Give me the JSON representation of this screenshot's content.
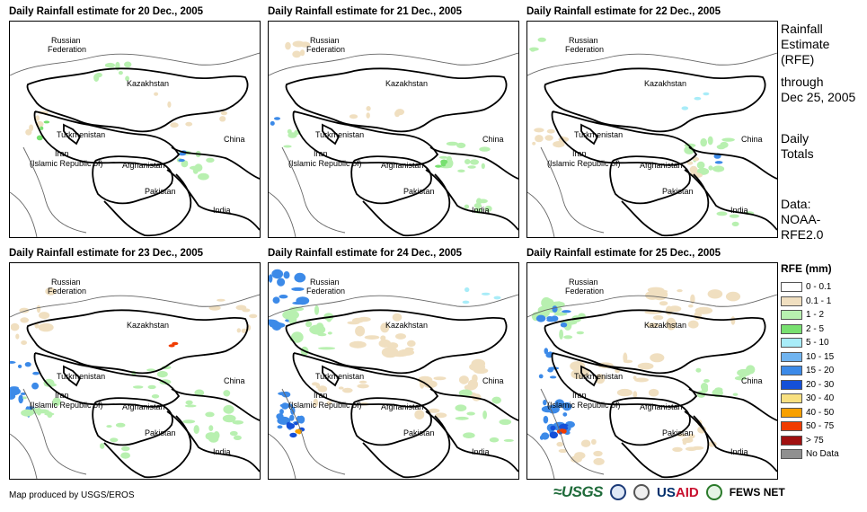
{
  "panels": [
    {
      "title": "Daily Rainfall estimate for 20 Dec., 2005"
    },
    {
      "title": "Daily Rainfall estimate for 21 Dec., 2005"
    },
    {
      "title": "Daily Rainfall estimate for 22 Dec., 2005"
    },
    {
      "title": "Daily Rainfall estimate for 23 Dec., 2005"
    },
    {
      "title": "Daily Rainfall estimate for 24 Dec., 2005"
    },
    {
      "title": "Daily Rainfall estimate for 25 Dec., 2005"
    }
  ],
  "map_labels": {
    "russia_1": "Russian",
    "russia_2": "Federation",
    "kazakhstan": "Kazakhstan",
    "turkmenistan": "Turkmenistan",
    "iran_1": "Iran",
    "iran_2": "(Islamic Republic of)",
    "afghanistan": "Afghanistan",
    "pakistan": "Pakistan",
    "china": "China",
    "india": "India"
  },
  "sidebar": {
    "line1": "Rainfall",
    "line2": "Estimate",
    "line3": "(RFE)",
    "line4": "through",
    "line5": "Dec 25, 2005",
    "line6": "Daily",
    "line7": "Totals",
    "line8": "Data:",
    "line9": "NOAA-",
    "line10": "RFE2.0"
  },
  "legend": {
    "title": "RFE (mm)",
    "items": [
      {
        "label": "0 - 0.1",
        "color": "#ffffff"
      },
      {
        "label": "0.1 - 1",
        "color": "#f0dfc0"
      },
      {
        "label": "1 - 2",
        "color": "#b8f0b0"
      },
      {
        "label": "2 - 5",
        "color": "#78e070"
      },
      {
        "label": "5 - 10",
        "color": "#a8ecf8"
      },
      {
        "label": "10 - 15",
        "color": "#70b4f0"
      },
      {
        "label": "15 - 20",
        "color": "#3c8ae8"
      },
      {
        "label": "20 - 30",
        "color": "#1450d8"
      },
      {
        "label": "30 - 40",
        "color": "#f8e080"
      },
      {
        "label": "40 - 50",
        "color": "#f8a000"
      },
      {
        "label": "50 - 75",
        "color": "#f03c00"
      },
      {
        "label": "> 75",
        "color": "#a01010"
      },
      {
        "label": "No Data",
        "color": "#909090"
      }
    ]
  },
  "credit": "Map produced by USGS/EROS",
  "logos": {
    "usgs": "≈USGS",
    "usaid_us": "US",
    "usaid_aid": "AID",
    "fews": "FEWS NET"
  },
  "colors": {
    "tan": "#f0dfc0",
    "light_green": "#b8f0b0",
    "green": "#78e070",
    "cyan": "#a8ecf8",
    "blue": "#3c8ae8",
    "dark_blue": "#1450d8",
    "orange": "#f8a000",
    "red": "#f03c00"
  }
}
